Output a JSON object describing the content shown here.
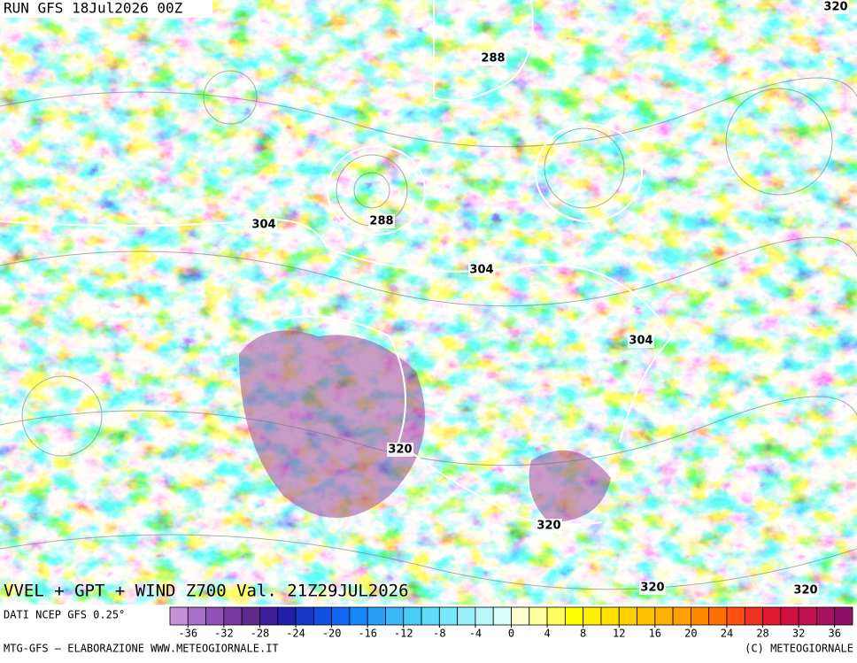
{
  "map": {
    "run_label": "RUN GFS 18Jul2026 00Z",
    "title": "VVEL + GPT + WIND Z700 Val. 21Z29JUL2026",
    "contour_labels": [
      288,
      288,
      304,
      304,
      304,
      320,
      320,
      320,
      320,
      320
    ]
  },
  "colorbar": {
    "source": "DATI NCEP GFS 0.25°",
    "range": [
      -38,
      38
    ],
    "ticks": [
      -36,
      -32,
      -28,
      -24,
      -20,
      -16,
      -12,
      -8,
      -4,
      0,
      4,
      8,
      12,
      16,
      20,
      24,
      28,
      32,
      36
    ],
    "colors": [
      "#c890d8",
      "#a870c8",
      "#9050b8",
      "#7838a0",
      "#602888",
      "#3c1c98",
      "#2020a8",
      "#1838c8",
      "#1050e0",
      "#1068f0",
      "#1888f8",
      "#28a0f8",
      "#38b8f8",
      "#48ccf8",
      "#60dcf8",
      "#78e8f8",
      "#98f0f8",
      "#b8f8f8",
      "#d8fcf8",
      "#ffffd0",
      "#ffffa0",
      "#ffff60",
      "#ffff00",
      "#fff000",
      "#ffe000",
      "#ffd000",
      "#ffc000",
      "#ffb000",
      "#ffa000",
      "#ff8800",
      "#ff7000",
      "#ff5010",
      "#f03020",
      "#e01830",
      "#d01040",
      "#c01050",
      "#a81060",
      "#901068"
    ]
  },
  "footer": {
    "left": "MTG-GFS — ELABORAZIONE WWW.METEOGIORNALE.IT",
    "right": "(C) METEOGIORNALE"
  }
}
